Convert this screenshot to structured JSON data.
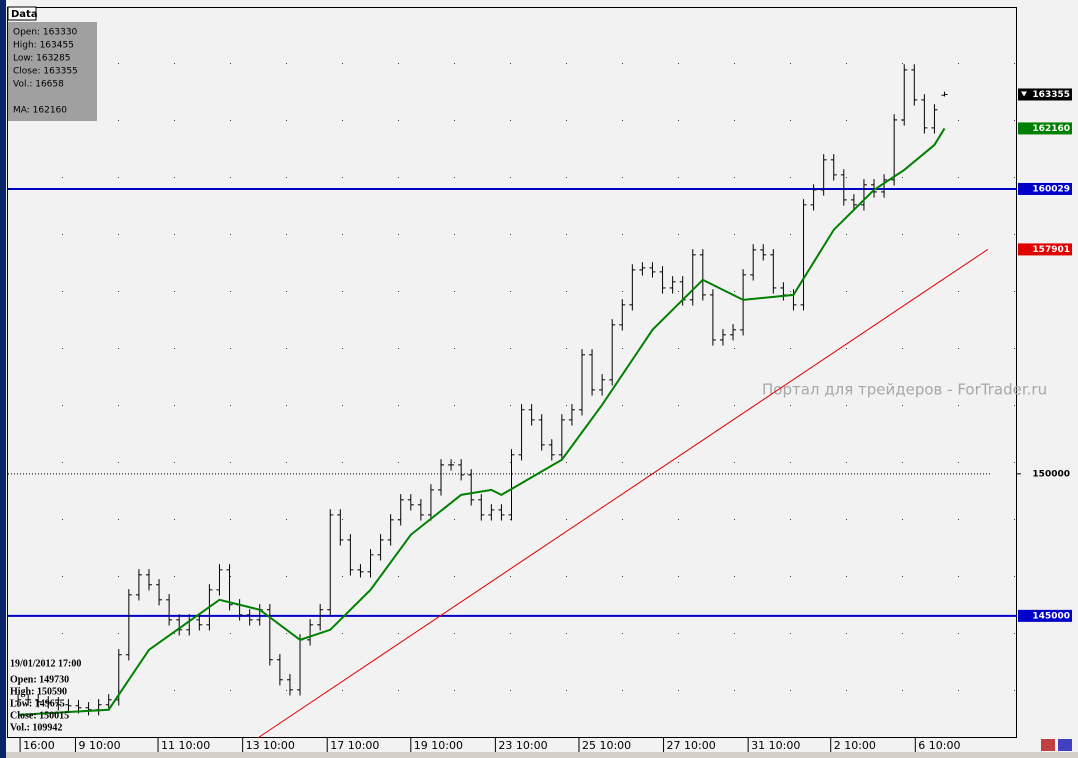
{
  "chart_data": {
    "type": "ohlc",
    "color": "#000000",
    "open": [
      142000,
      142045,
      142045,
      141975,
      141940,
      141870,
      141835,
      141765,
      141695,
      141870,
      142045,
      143630,
      145740,
      146445,
      146095,
      145565,
      144860,
      144510,
      144860,
      144685,
      145915,
      146620,
      145390,
      145035,
      144860,
      145215,
      143455,
      142750,
      142395,
      144155,
      144685,
      145215,
      148555,
      147675,
      146620,
      146550,
      147150,
      147675,
      148380,
      149085,
      148910,
      148555,
      149435,
      150315,
      150315,
      149965,
      149085,
      148555,
      148730,
      148555,
      150670,
      152255,
      151900,
      151020,
      150670,
      151900,
      152255,
      154190,
      152955,
      153310,
      155245,
      155950,
      157180,
      157250,
      157110,
      156545,
      156760,
      156125,
      157710,
      156300,
      154715,
      154895,
      155070,
      157005,
      157885,
      157710,
      156545,
      156300,
      155950,
      159470,
      159995,
      161055,
      160525,
      159645,
      159470,
      160175,
      159925,
      160350,
      162460,
      164220,
      163165,
      162180,
      163330
    ],
    "high": [
      142245,
      142245,
      142245,
      142175,
      142140,
      142070,
      142035,
      141965,
      142070,
      142245,
      143830,
      145940,
      146645,
      146645,
      146295,
      145765,
      145060,
      145060,
      145060,
      146115,
      146820,
      146820,
      145590,
      145235,
      145415,
      145415,
      143655,
      142950,
      144355,
      144885,
      145415,
      148755,
      148755,
      147875,
      146820,
      147350,
      147875,
      148580,
      149285,
      149285,
      149110,
      149635,
      150515,
      150515,
      150515,
      150165,
      149285,
      148930,
      148930,
      150870,
      152455,
      152455,
      152100,
      151220,
      152100,
      152455,
      154390,
      154390,
      153510,
      155445,
      156150,
      157380,
      157450,
      157450,
      157310,
      156960,
      156960,
      157910,
      157910,
      156500,
      155095,
      155270,
      157205,
      158085,
      158085,
      157910,
      156745,
      156500,
      159670,
      160195,
      161255,
      161255,
      160725,
      159845,
      160375,
      160375,
      160550,
      162660,
      164420,
      164420,
      163365,
      163015,
      163455
    ],
    "low": [
      141800,
      141845,
      141775,
      141740,
      141670,
      141635,
      141565,
      141495,
      141495,
      141670,
      141845,
      143430,
      145540,
      145895,
      145365,
      144660,
      144310,
      144310,
      144485,
      144485,
      145715,
      145190,
      144835,
      144660,
      144660,
      143255,
      142550,
      142195,
      142195,
      143955,
      144485,
      145015,
      147475,
      146420,
      146350,
      146350,
      146950,
      147475,
      148180,
      148710,
      148355,
      148355,
      149235,
      150115,
      149765,
      148885,
      148355,
      148355,
      148355,
      148355,
      150470,
      151700,
      150820,
      150470,
      150470,
      151700,
      152055,
      152755,
      152755,
      153110,
      155045,
      155750,
      156980,
      156910,
      156345,
      156345,
      155925,
      155925,
      156100,
      154515,
      154515,
      154695,
      154870,
      156805,
      157510,
      156345,
      156100,
      155750,
      155750,
      159270,
      159795,
      160325,
      159445,
      159270,
      159270,
      159725,
      159725,
      160150,
      162260,
      162965,
      161980,
      161980,
      163285
    ],
    "close": [
      142045,
      142045,
      141975,
      141940,
      141870,
      141835,
      141765,
      141695,
      141870,
      142045,
      143630,
      145740,
      146445,
      146095,
      145565,
      144860,
      144510,
      144860,
      144685,
      145915,
      146620,
      145390,
      145035,
      144860,
      145215,
      143455,
      142750,
      142395,
      144155,
      144685,
      145215,
      148555,
      147675,
      146620,
      146550,
      147150,
      147675,
      148380,
      149085,
      148910,
      148555,
      149435,
      150315,
      150315,
      149965,
      149085,
      148555,
      148730,
      148555,
      150670,
      152255,
      151900,
      151020,
      150670,
      151900,
      152255,
      154190,
      152955,
      153310,
      155245,
      155950,
      157180,
      157250,
      157110,
      156545,
      156760,
      156125,
      157710,
      156300,
      154715,
      154895,
      155070,
      157005,
      157885,
      157710,
      156545,
      156300,
      155950,
      159470,
      159995,
      161055,
      160525,
      159645,
      159470,
      160175,
      159925,
      160350,
      162460,
      164220,
      163165,
      162180,
      162815,
      163355
    ],
    "ma": {
      "color": "#008000",
      "x": [
        0,
        9,
        13,
        20,
        24,
        28,
        31,
        35,
        39,
        44,
        47,
        48,
        54,
        58,
        63,
        68,
        72,
        77,
        81,
        85,
        88,
        91,
        92
      ],
      "values": [
        141515,
        141695,
        143805,
        145565,
        145215,
        144155,
        144510,
        145915,
        147855,
        149260,
        149435,
        149260,
        150495,
        152430,
        155070,
        156830,
        156125,
        156300,
        158590,
        159995,
        160700,
        161580,
        162160
      ]
    },
    "hlines": [
      {
        "value": 160029,
        "color": "#0000c8"
      },
      {
        "value": 145000,
        "color": "#0000c8"
      }
    ],
    "trendline": {
      "color": "#e00000",
      "x": [
        23.8,
        96.3
      ],
      "values": [
        140700,
        157901
      ]
    },
    "xlim": [
      -1,
      99
    ],
    "ylim": [
      140700,
      166400
    ],
    "yticks": [
      150000
    ],
    "price_tags": [
      {
        "value": 163355,
        "color": "#000000"
      },
      {
        "value": 162160,
        "color": "#008000"
      },
      {
        "value": 160029,
        "color": "#0000c8"
      },
      {
        "value": 157901,
        "color": "#e00000"
      },
      {
        "value": 145000,
        "color": "#0000c8"
      }
    ],
    "xticks": [
      {
        "value": 0.2,
        "label": "16:00"
      },
      {
        "value": 5.7,
        "label": "9 10:00"
      },
      {
        "value": 13.9,
        "label": "11 10:00"
      },
      {
        "value": 22.3,
        "label": "13 10:00"
      },
      {
        "value": 30.7,
        "label": "17 10:00"
      },
      {
        "value": 39.0,
        "label": "19 10:00"
      },
      {
        "value": 47.4,
        "label": "23 10:00"
      },
      {
        "value": 55.7,
        "label": "25 10:00"
      },
      {
        "value": 64.1,
        "label": "27 10:00"
      },
      {
        "value": 72.5,
        "label": "31 10:00"
      },
      {
        "value": 80.7,
        "label": "2 10:00"
      },
      {
        "value": 89.1,
        "label": "6 10:00"
      }
    ],
    "data_window": {
      "title": "Data",
      "lines": [
        "Open: 163330",
        "High: 163455",
        "Low: 163285",
        "Close: 163355",
        "Vol.: 16658",
        "MA: 162160"
      ]
    },
    "cursor_info": [
      "19/01/2012 17:00",
      "Open: 149730",
      "High: 150590",
      "Low: 149675",
      "Close: 150015",
      "Vol.: 109942"
    ],
    "watermark": "Портал для трейдеров - ForTrader.ru"
  }
}
